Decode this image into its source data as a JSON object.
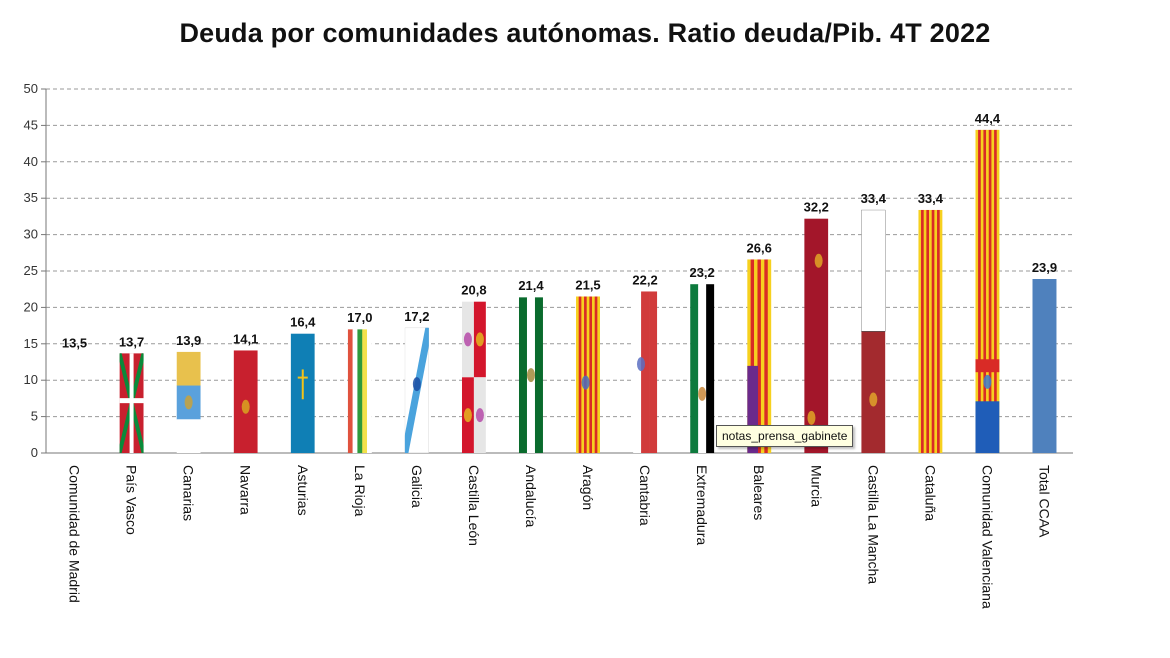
{
  "chart_data": {
    "type": "bar",
    "title": "Deuda por comunidades autónomas. Ratio deuda/Pib. 4T 2022",
    "xlabel": "",
    "ylabel": "",
    "ylim": [
      0,
      50
    ],
    "yticks": [
      0,
      5,
      10,
      15,
      20,
      25,
      30,
      35,
      40,
      45,
      50
    ],
    "grid": true,
    "categories": [
      "Comunidad de Madrid",
      "País Vasco",
      "Canarias",
      "Navarra",
      "Asturias",
      "La Rioja",
      "Galicia",
      "Castilla León",
      "Andalucía",
      "Aragón",
      "Cantabria",
      "Extremadura",
      "Baleares",
      "Murcia",
      "Castilla La Mancha",
      "Cataluña",
      "Comunidad Valenciana",
      "Total CCAA"
    ],
    "values": [
      13.5,
      13.7,
      13.9,
      14.1,
      16.4,
      17.0,
      17.2,
      20.8,
      21.4,
      21.5,
      22.2,
      23.2,
      26.6,
      32.2,
      33.4,
      33.4,
      44.4,
      23.9
    ],
    "value_labels": [
      "13,5",
      "13,7",
      "13,9",
      "14,1",
      "16,4",
      "17,0",
      "17,2",
      "20,8",
      "21,4",
      "21,5",
      "22,2",
      "23,2",
      "26,6",
      "32,2",
      "33,4",
      "33,4",
      "44,4",
      "23,9"
    ],
    "fills": [
      "flag-madrid",
      "flag-pais-vasco",
      "flag-canarias",
      "flag-navarra",
      "flag-asturias",
      "flag-la-rioja",
      "flag-galicia",
      "flag-castilla-leon",
      "flag-andalucia",
      "flag-aragon",
      "flag-cantabria",
      "flag-extremadura",
      "flag-baleares",
      "flag-murcia",
      "flag-castilla-la-mancha",
      "flag-cataluna",
      "flag-comunidad-valenciana",
      "solid-blue"
    ]
  },
  "tooltip": {
    "text": "notas_prensa_gabinete"
  }
}
